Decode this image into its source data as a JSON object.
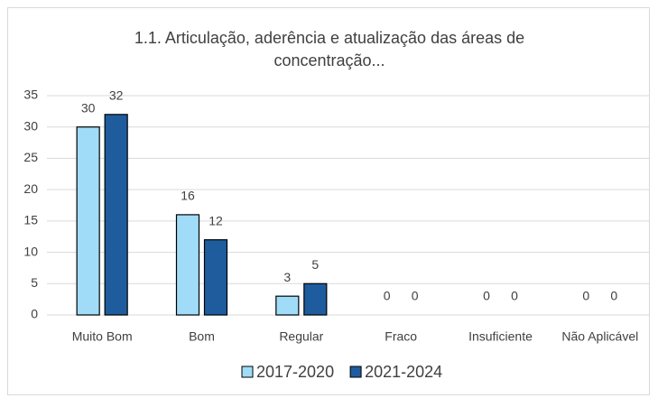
{
  "chart_data": {
    "type": "bar",
    "title": "1.1. Articulação, aderência e atualização das áreas de concentração...",
    "categories": [
      "Muito Bom",
      "Bom",
      "Regular",
      "Fraco",
      "Insuficiente",
      "Não Aplicável"
    ],
    "series": [
      {
        "name": "2017-2020",
        "color": "#a0dcf8",
        "values": [
          30,
          16,
          3,
          0,
          0,
          0
        ]
      },
      {
        "name": "2021-2024",
        "color": "#1f5c9e",
        "values": [
          32,
          12,
          5,
          0,
          0,
          0
        ]
      }
    ],
    "ylim": [
      0,
      35
    ],
    "yticks": [
      0,
      5,
      10,
      15,
      20,
      25,
      30,
      35
    ],
    "grid": true,
    "legend": "bottom"
  }
}
